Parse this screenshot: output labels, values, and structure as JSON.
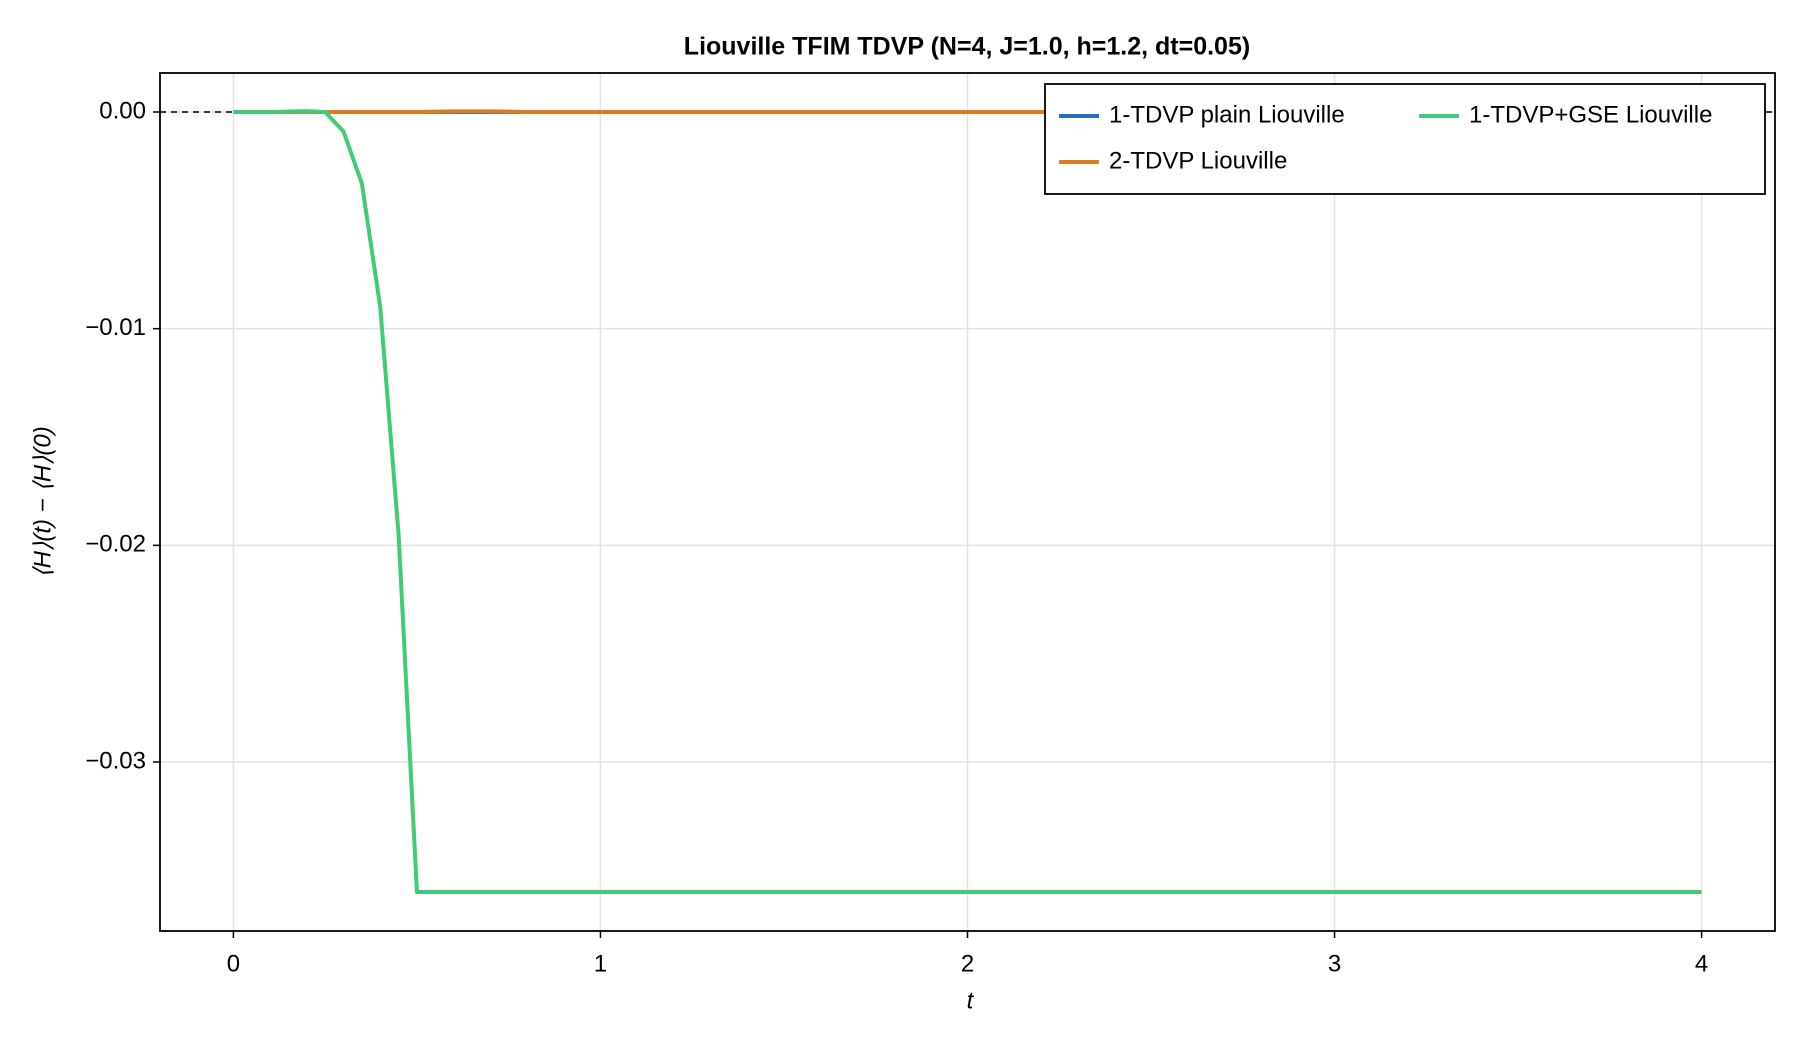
{
  "chart_data": {
    "type": "line",
    "title": "Liouville TFIM TDVP (N=4, J=1.0, h=1.2, dt=0.05)",
    "x_label": "t",
    "y_label": "⟨H⟩(t) − ⟨H⟩(0)",
    "xlim": [
      -0.2,
      4.2
    ],
    "ylim": [
      -0.0378,
      0.0018
    ],
    "xticks": [
      0,
      1,
      2,
      3,
      4
    ],
    "yticks": [
      {
        "value": 0,
        "label": "0.00"
      },
      {
        "value": -0.01,
        "label": "−0.01"
      },
      {
        "value": -0.02,
        "label": "−0.02"
      },
      {
        "value": -0.03,
        "label": "−0.03"
      }
    ],
    "hline": 0,
    "grid": true,
    "legend": "top-right",
    "series": [
      {
        "name": "1-TDVP plain Liouville",
        "color": "#2370c0",
        "x": [
          0,
          4
        ],
        "values": [
          0,
          0
        ]
      },
      {
        "name": "2-TDVP Liouville",
        "color": "#e07b1c",
        "x": [
          0,
          0.5,
          0.6,
          0.7,
          0.8,
          4
        ],
        "values": [
          0,
          0,
          3e-05,
          3e-05,
          0,
          0
        ]
      },
      {
        "name": "1-TDVP+GSE Liouville",
        "color": "#3fcb78",
        "x": [
          0,
          0.1,
          0.2,
          0.25,
          0.3,
          0.35,
          0.4,
          0.45,
          0.5,
          4
        ],
        "values": [
          0,
          0,
          4e-05,
          0,
          -0.0009,
          -0.0033,
          -0.009,
          -0.0195,
          -0.036,
          -0.036
        ]
      }
    ]
  }
}
